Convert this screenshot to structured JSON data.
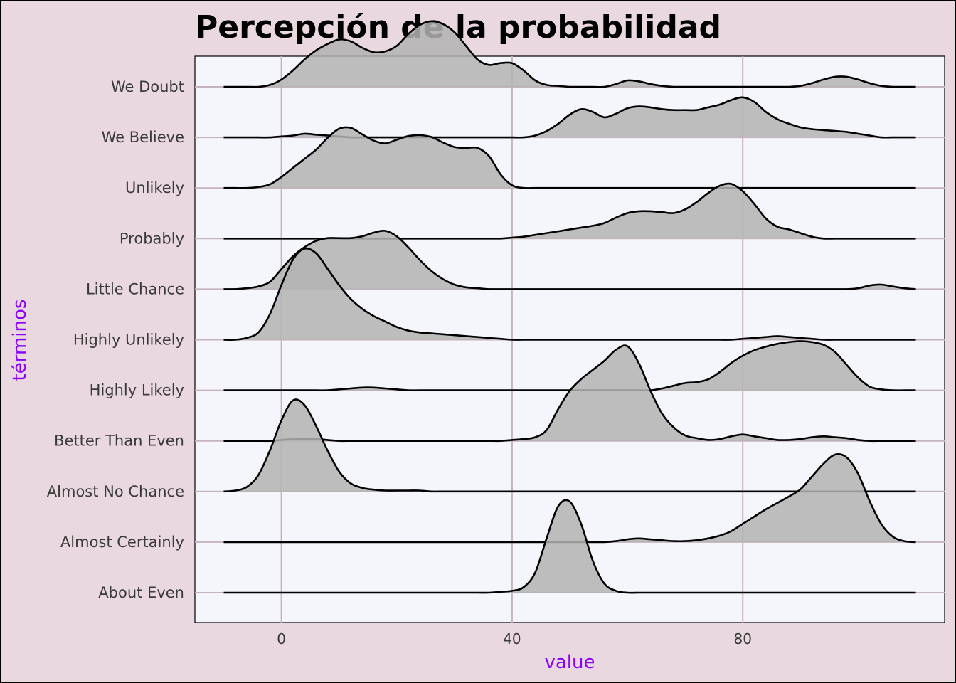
{
  "chart_data": {
    "type": "ridgeline",
    "title": "Percepción de la probabilidad",
    "xlabel": "value",
    "ylabel": "términos",
    "xlim": [
      -15,
      115
    ],
    "xticks": [
      0,
      40,
      80
    ],
    "label_color": "#8b00ff",
    "fill_color": "#b3b3b3",
    "panel_color": "#f5f6fc",
    "grid_color": "#c6b3bd",
    "grid": true,
    "x": [
      -10,
      -8,
      -6,
      -4,
      -2,
      0,
      2,
      4,
      6,
      8,
      10,
      12,
      14,
      16,
      18,
      20,
      22,
      24,
      26,
      28,
      30,
      32,
      34,
      36,
      38,
      40,
      42,
      44,
      46,
      48,
      50,
      52,
      54,
      56,
      58,
      60,
      62,
      64,
      66,
      68,
      70,
      72,
      74,
      76,
      78,
      80,
      82,
      84,
      86,
      88,
      90,
      92,
      94,
      96,
      98,
      100,
      102,
      104,
      106,
      108,
      110
    ],
    "series": [
      {
        "name": "About Even",
        "values": [
          0,
          0,
          0,
          0,
          0,
          0,
          0,
          0,
          0,
          0,
          0,
          0,
          0,
          0,
          0,
          0,
          0,
          0,
          0,
          0,
          0,
          0,
          0,
          0,
          0.01,
          0.02,
          0.06,
          0.22,
          0.6,
          0.95,
          1.0,
          0.75,
          0.35,
          0.1,
          0.02,
          0,
          0,
          0,
          0,
          0,
          0,
          0,
          0,
          0,
          0,
          0,
          0,
          0,
          0,
          0,
          0,
          0,
          0,
          0,
          0,
          0,
          0,
          0,
          0,
          0,
          0
        ]
      },
      {
        "name": "Almost Certainly",
        "values": [
          0,
          0,
          0,
          0,
          0,
          0,
          0,
          0,
          0,
          0,
          0,
          0,
          0,
          0,
          0,
          0,
          0,
          0,
          0,
          0,
          0,
          0,
          0,
          0,
          0,
          0,
          0,
          0,
          0,
          0,
          0,
          0,
          0,
          0,
          0.01,
          0.03,
          0.04,
          0.03,
          0.02,
          0.01,
          0.01,
          0.02,
          0.04,
          0.07,
          0.12,
          0.2,
          0.28,
          0.36,
          0.43,
          0.5,
          0.58,
          0.72,
          0.86,
          0.96,
          0.93,
          0.75,
          0.45,
          0.2,
          0.06,
          0.01,
          0
        ]
      },
      {
        "name": "Almost No Chance",
        "values": [
          0,
          0.01,
          0.05,
          0.18,
          0.45,
          0.78,
          1.0,
          0.95,
          0.72,
          0.45,
          0.22,
          0.09,
          0.04,
          0.02,
          0.01,
          0.01,
          0.01,
          0.01,
          0,
          0,
          0,
          0,
          0,
          0,
          0,
          0,
          0,
          0,
          0,
          0,
          0,
          0,
          0,
          0,
          0,
          0,
          0,
          0,
          0,
          0,
          0,
          0,
          0,
          0,
          0,
          0,
          0,
          0,
          0,
          0,
          0,
          0,
          0,
          0,
          0,
          0,
          0,
          0,
          0,
          0,
          0
        ]
      },
      {
        "name": "Better Than Even",
        "values": [
          0,
          0,
          0,
          0,
          0,
          0.01,
          0.02,
          0.02,
          0.02,
          0.01,
          0,
          0,
          0,
          0,
          0,
          0,
          0,
          0,
          0,
          0,
          0,
          0,
          0,
          0,
          0,
          0.01,
          0.02,
          0.04,
          0.12,
          0.35,
          0.55,
          0.68,
          0.78,
          0.88,
          1.0,
          1.04,
          0.85,
          0.55,
          0.3,
          0.15,
          0.06,
          0.03,
          0.01,
          0.02,
          0.05,
          0.07,
          0.05,
          0.03,
          0.01,
          0.01,
          0.02,
          0.04,
          0.05,
          0.04,
          0.03,
          0.01,
          0,
          0,
          0,
          0,
          0
        ]
      },
      {
        "name": "Highly Likely",
        "values": [
          0,
          0,
          0,
          0,
          0,
          0,
          0,
          0,
          0,
          0,
          0.01,
          0.02,
          0.03,
          0.03,
          0.02,
          0.01,
          0,
          0,
          0,
          0,
          0,
          0,
          0,
          0,
          0,
          0,
          0,
          0,
          0,
          0,
          0,
          0,
          0,
          0,
          0,
          0,
          0,
          0,
          0.02,
          0.05,
          0.08,
          0.09,
          0.12,
          0.2,
          0.3,
          0.38,
          0.44,
          0.48,
          0.51,
          0.53,
          0.54,
          0.53,
          0.5,
          0.42,
          0.28,
          0.14,
          0.04,
          0.01,
          0,
          0,
          0
        ]
      },
      {
        "name": "Highly Unlikely",
        "values": [
          0,
          0,
          0.02,
          0.08,
          0.28,
          0.6,
          0.88,
          1.0,
          0.95,
          0.78,
          0.6,
          0.45,
          0.34,
          0.26,
          0.2,
          0.14,
          0.1,
          0.08,
          0.07,
          0.06,
          0.05,
          0.04,
          0.03,
          0.02,
          0.01,
          0,
          0,
          0,
          0,
          0,
          0,
          0,
          0,
          0,
          0,
          0,
          0,
          0,
          0,
          0,
          0,
          0,
          0,
          0,
          0,
          0.01,
          0.02,
          0.03,
          0.04,
          0.03,
          0.02,
          0.01,
          0,
          0,
          0,
          0,
          0,
          0,
          0,
          0,
          0
        ]
      },
      {
        "name": "Little Chance",
        "values": [
          0,
          0,
          0.01,
          0.03,
          0.08,
          0.22,
          0.36,
          0.46,
          0.53,
          0.56,
          0.56,
          0.56,
          0.58,
          0.62,
          0.64,
          0.58,
          0.46,
          0.32,
          0.2,
          0.11,
          0.05,
          0.02,
          0.01,
          0,
          0,
          0,
          0,
          0,
          0,
          0,
          0,
          0,
          0,
          0,
          0,
          0,
          0,
          0,
          0,
          0,
          0,
          0,
          0,
          0,
          0,
          0,
          0,
          0,
          0,
          0,
          0,
          0,
          0,
          0,
          0,
          0.01,
          0.04,
          0.05,
          0.03,
          0.01,
          0
        ]
      },
      {
        "name": "Probably",
        "values": [
          0,
          0,
          0,
          0,
          0,
          0,
          0,
          0,
          0,
          0,
          0,
          0,
          0,
          0,
          0,
          0,
          0,
          0,
          0,
          0,
          0,
          0,
          0,
          0,
          0,
          0.01,
          0.02,
          0.04,
          0.06,
          0.08,
          0.1,
          0.12,
          0.14,
          0.17,
          0.23,
          0.28,
          0.3,
          0.3,
          0.29,
          0.28,
          0.32,
          0.4,
          0.5,
          0.58,
          0.6,
          0.52,
          0.38,
          0.22,
          0.13,
          0.1,
          0.06,
          0.02,
          0,
          0,
          0,
          0,
          0,
          0,
          0,
          0,
          0
        ]
      },
      {
        "name": "Unlikely",
        "values": [
          0,
          0,
          0,
          0.01,
          0.04,
          0.12,
          0.22,
          0.32,
          0.42,
          0.55,
          0.65,
          0.66,
          0.59,
          0.52,
          0.49,
          0.53,
          0.57,
          0.58,
          0.56,
          0.5,
          0.45,
          0.44,
          0.44,
          0.35,
          0.15,
          0.03,
          0,
          0,
          0,
          0,
          0,
          0,
          0,
          0,
          0,
          0,
          0,
          0,
          0,
          0,
          0,
          0,
          0,
          0,
          0,
          0,
          0,
          0,
          0,
          0,
          0,
          0,
          0,
          0,
          0,
          0,
          0,
          0,
          0,
          0,
          0
        ]
      },
      {
        "name": "We Believe",
        "values": [
          0,
          0,
          0,
          0,
          0,
          0.01,
          0.02,
          0.04,
          0.03,
          0.02,
          0.01,
          0,
          0,
          0,
          0,
          0,
          0,
          0,
          0,
          0,
          0,
          0,
          0,
          0,
          0,
          0,
          0,
          0.02,
          0.07,
          0.15,
          0.25,
          0.31,
          0.28,
          0.22,
          0.26,
          0.32,
          0.34,
          0.33,
          0.31,
          0.3,
          0.3,
          0.3,
          0.33,
          0.36,
          0.41,
          0.44,
          0.39,
          0.28,
          0.2,
          0.15,
          0.11,
          0.09,
          0.08,
          0.07,
          0.06,
          0.04,
          0.02,
          0,
          0,
          0,
          0
        ]
      },
      {
        "name": "We Doubt",
        "values": [
          0,
          0,
          0,
          0,
          0.02,
          0.08,
          0.18,
          0.3,
          0.4,
          0.47,
          0.52,
          0.5,
          0.43,
          0.38,
          0.39,
          0.45,
          0.58,
          0.68,
          0.72,
          0.69,
          0.6,
          0.45,
          0.3,
          0.24,
          0.26,
          0.26,
          0.18,
          0.07,
          0.02,
          0.01,
          0,
          0,
          0,
          0,
          0.03,
          0.07,
          0.06,
          0.03,
          0.01,
          0,
          0,
          0,
          0,
          0,
          0,
          0,
          0,
          0,
          0,
          0,
          0.01,
          0.04,
          0.08,
          0.11,
          0.11,
          0.08,
          0.04,
          0.01,
          0,
          0,
          0
        ]
      }
    ]
  }
}
